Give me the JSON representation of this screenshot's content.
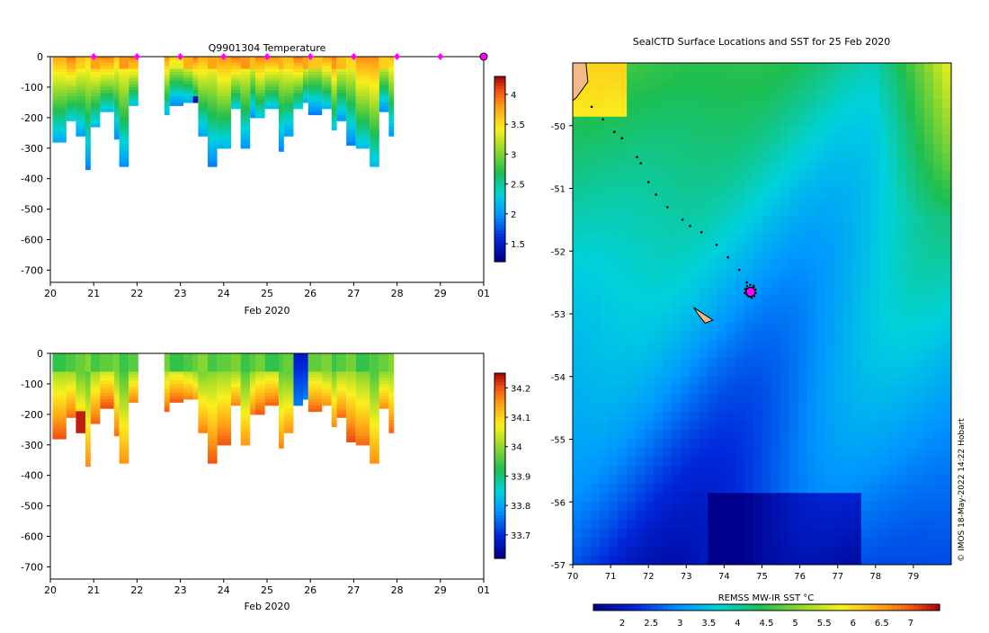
{
  "chart_data": [
    {
      "type": "heatmap",
      "title": "Q9901304  Temperature",
      "xlabel": "Feb 2020",
      "ylabel": "",
      "x_ticks": [
        "20",
        "21",
        "22",
        "23",
        "24",
        "25",
        "26",
        "27",
        "28",
        "29",
        "01"
      ],
      "xlim": [
        20,
        30
      ],
      "y_ticks": [
        "0",
        "-100",
        "-200",
        "-300",
        "-400",
        "-500",
        "-600",
        "-700"
      ],
      "ylim": [
        -740,
        0
      ],
      "colorbar_ticks": [
        "4",
        "3.5",
        "3",
        "2.5",
        "2",
        "1.5"
      ],
      "colorbar_range": [
        1.2,
        4.3
      ],
      "marker_days": [
        21,
        22,
        23,
        24,
        25,
        26,
        27,
        28,
        29
      ],
      "profile_max_depth": [
        280,
        210,
        260,
        370,
        230,
        175,
        270,
        360,
        155,
        190,
        160,
        150,
        150,
        260,
        360,
        300,
        170,
        300,
        200,
        200,
        170,
        310,
        260,
        170,
        150,
        185,
        170,
        235,
        210,
        285,
        300,
        360,
        180,
        260
      ],
      "colors": {
        "cold": "#0a0a8c",
        "warm": "#b01010",
        "marker": "#ff00ff"
      }
    },
    {
      "type": "heatmap",
      "title": "",
      "xlabel": "Feb 2020",
      "ylabel": "",
      "x_ticks": [
        "20",
        "21",
        "22",
        "23",
        "24",
        "25",
        "26",
        "27",
        "28",
        "29",
        "01"
      ],
      "xlim": [
        20,
        30
      ],
      "y_ticks": [
        "0",
        "-100",
        "-200",
        "-300",
        "-400",
        "-500",
        "-600",
        "-700"
      ],
      "ylim": [
        -740,
        0
      ],
      "colorbar_ticks": [
        "34.2",
        "34.1",
        "34",
        "33.9",
        "33.8",
        "33.7"
      ],
      "colorbar_range": [
        33.62,
        34.25
      ],
      "profile_max_depth": [
        280,
        210,
        260,
        370,
        230,
        175,
        270,
        360,
        155,
        190,
        160,
        150,
        150,
        260,
        360,
        300,
        170,
        300,
        200,
        200,
        170,
        310,
        260,
        170,
        150,
        185,
        170,
        235,
        210,
        285,
        300,
        360,
        180,
        260
      ]
    },
    {
      "type": "heatmap",
      "title": "SealCTD Surface Locations and SST for 25 Feb 2020",
      "xlabel": "",
      "ylabel": "",
      "x_ticks": [
        "70",
        "71",
        "72",
        "73",
        "74",
        "75",
        "76",
        "77",
        "78",
        "79"
      ],
      "xlim": [
        70,
        80
      ],
      "y_ticks": [
        "-50",
        "-51",
        "-52",
        "-53",
        "-54",
        "-55",
        "-56",
        "-57"
      ],
      "ylim": [
        -57,
        -49
      ],
      "colorbar_label": "REMSS MW-IR SST °C",
      "colorbar_ticks": [
        "2",
        "2.5",
        "3",
        "3.5",
        "4",
        "4.5",
        "5",
        "5.5",
        "6",
        "6.5",
        "7"
      ],
      "colorbar_range": [
        1.5,
        7.5
      ],
      "track_points": [
        [
          70.5,
          -49.7
        ],
        [
          70.8,
          -49.9
        ],
        [
          71.1,
          -50.1
        ],
        [
          71.3,
          -50.2
        ],
        [
          71.7,
          -50.5
        ],
        [
          71.8,
          -50.6
        ],
        [
          72.0,
          -50.9
        ],
        [
          72.2,
          -51.1
        ],
        [
          72.5,
          -51.3
        ],
        [
          72.9,
          -51.5
        ],
        [
          73.1,
          -51.6
        ],
        [
          73.4,
          -51.7
        ],
        [
          73.8,
          -51.9
        ],
        [
          74.1,
          -52.1
        ],
        [
          74.4,
          -52.3
        ],
        [
          74.6,
          -52.5
        ],
        [
          74.7,
          -52.6
        ]
      ],
      "highlight_point": [
        74.7,
        -52.65
      ],
      "island": [
        [
          73.2,
          -52.9
        ],
        [
          73.7,
          -53.1
        ],
        [
          73.5,
          -53.15
        ],
        [
          73.3,
          -53.0
        ]
      ],
      "colors": {
        "land": "#f4b987",
        "marker": "#ff00ff"
      }
    }
  ],
  "credit": "© IMOS 18-May-2022 14:22 Hobart"
}
